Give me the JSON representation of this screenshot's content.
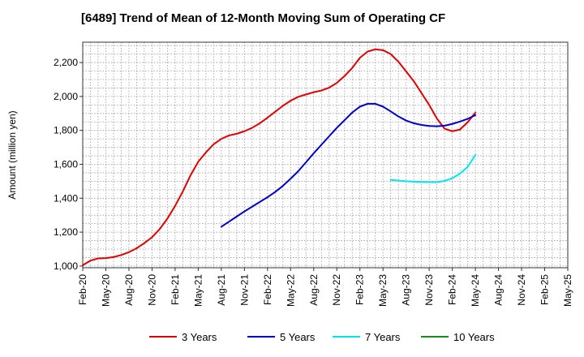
{
  "chart_data": {
    "type": "line",
    "title": "[6489]  Trend of Mean of 12-Month Moving Sum of Operating CF",
    "xlabel": "",
    "ylabel": "Amount (million yen)",
    "ylim": [
      990,
      2320
    ],
    "yticks": [
      1000,
      1200,
      1400,
      1600,
      1800,
      2000,
      2200
    ],
    "ytick_labels": [
      "1,000",
      "1,200",
      "1,400",
      "1,600",
      "1,800",
      "2,000",
      "2,200"
    ],
    "xtick_labels": [
      "Feb-20",
      "May-20",
      "Aug-20",
      "Nov-20",
      "Feb-21",
      "May-21",
      "Aug-21",
      "Nov-21",
      "Feb-22",
      "May-22",
      "Aug-22",
      "Nov-22",
      "Feb-23",
      "May-23",
      "Aug-23",
      "Nov-23",
      "Feb-24",
      "May-24",
      "Aug-24",
      "Nov-24",
      "Feb-25",
      "May-25"
    ],
    "x_range_months": [
      0,
      63
    ],
    "grid": true,
    "legend_position": "bottom",
    "series": [
      {
        "name": "3 Years",
        "color": "#e00000",
        "x": [
          0,
          1,
          2,
          3,
          4,
          5,
          6,
          7,
          8,
          9,
          10,
          11,
          12,
          13,
          14,
          15,
          16,
          17,
          18,
          19,
          20,
          21,
          22,
          23,
          24,
          25,
          26,
          27,
          28,
          29,
          30,
          31,
          32,
          33,
          34,
          35,
          36,
          37,
          38,
          39,
          40,
          41,
          42,
          43,
          44,
          45,
          46,
          47,
          48,
          49,
          50,
          51,
          52,
          53,
          54,
          55,
          56,
          57
        ],
        "values": [
          1005,
          1032,
          1045,
          1047,
          1053,
          1065,
          1082,
          1105,
          1135,
          1170,
          1218,
          1280,
          1355,
          1440,
          1535,
          1615,
          1670,
          1718,
          1750,
          1770,
          1780,
          1795,
          1815,
          1842,
          1875,
          1910,
          1945,
          1975,
          1998,
          2012,
          2025,
          2035,
          2052,
          2080,
          2120,
          2168,
          2228,
          2265,
          2278,
          2273,
          2250,
          2205,
          2148,
          2090,
          2020,
          1950,
          1870,
          1810,
          1795,
          1805,
          1848,
          1905,
          null,
          null,
          null,
          null,
          null,
          null
        ]
      },
      {
        "name": "5 Years",
        "color": "#0000cc",
        "x": [
          18,
          19,
          20,
          21,
          22,
          23,
          24,
          25,
          26,
          27,
          28,
          29,
          30,
          31,
          32,
          33,
          34,
          35,
          36,
          37,
          38,
          39,
          40,
          41,
          42,
          43,
          44,
          45,
          46,
          47,
          48,
          49,
          50,
          51
        ],
        "values": [
          1232,
          1262,
          1292,
          1322,
          1350,
          1378,
          1406,
          1437,
          1473,
          1515,
          1560,
          1612,
          1665,
          1715,
          1765,
          1815,
          1860,
          1905,
          1940,
          1957,
          1957,
          1940,
          1912,
          1882,
          1858,
          1842,
          1832,
          1826,
          1824,
          1828,
          1838,
          1852,
          1868,
          1890
        ]
      },
      {
        "name": "7 Years",
        "color": "#00e5ee",
        "x": [
          40,
          41,
          42,
          43,
          44,
          45,
          46,
          47,
          48,
          49,
          50,
          51
        ],
        "values": [
          1508,
          1504,
          1500,
          1498,
          1496,
          1495,
          1495,
          1502,
          1518,
          1545,
          1585,
          1655
        ]
      },
      {
        "name": "10 Years",
        "color": "#1a8c1a",
        "x": [],
        "values": []
      }
    ]
  }
}
